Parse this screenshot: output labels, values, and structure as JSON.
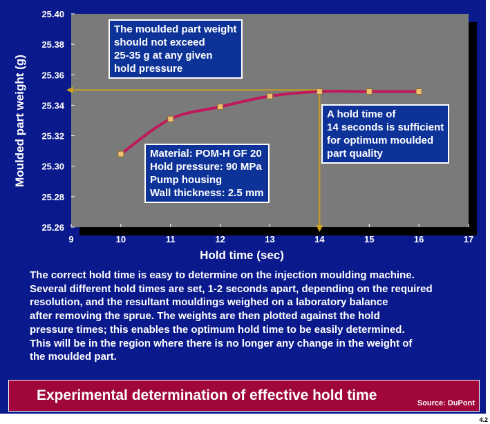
{
  "chart_data": {
    "type": "line",
    "xlabel": "Hold time (sec)",
    "ylabel": "Moulded part weight (g)",
    "xlim": [
      9,
      17
    ],
    "ylim": [
      25.26,
      25.4
    ],
    "x_ticks": [
      "9",
      "10",
      "11",
      "12",
      "13",
      "14",
      "15",
      "16",
      "17"
    ],
    "y_ticks": [
      "25.26",
      "25.28",
      "25.30",
      "25.32",
      "25.34",
      "25.36",
      "25.38",
      "25.40"
    ],
    "grid": false,
    "series": [
      {
        "x": [
          10,
          11,
          12,
          13,
          14,
          15,
          16
        ],
        "y": [
          25.308,
          25.331,
          25.339,
          25.346,
          25.349,
          25.349,
          25.349
        ]
      }
    ],
    "reference_lines": [
      {
        "orientation": "horizontal",
        "y": 25.35
      },
      {
        "orientation": "vertical",
        "x": 14
      }
    ],
    "annotations": [
      "The moulded part weight\nshould not exceed\n25-35 g at any given\nhold pressure",
      "A hold time of\n14 seconds is sufficient\nfor optimum moulded\npart quality",
      "Material: POM-H GF 20\nHold pressure: 90 MPa\nPump housing\nWall thickness: 2.5 mm"
    ]
  },
  "colors": {
    "slide_background": "#0a1a8c",
    "plot_background": "#7a7a7a",
    "curve": "#c0185a",
    "markers": "#f0c070",
    "reference_lines": "#c8a020",
    "banner": "#a0063a"
  },
  "description": "The correct hold time is easy to determine on the injection moulding machine.\nSeveral different hold times are set, 1-2 seconds apart, depending on the required\nresolution, and the resultant mouldings weighed on a laboratory balance\nafter removing the sprue. The weights are then plotted against the hold\npressure times; this enables the optimum hold time to be easily determined.\nThis will be in the region where there is no longer any change in the weight of\nthe moulded part.",
  "banner": {
    "title": "Experimental determination of effective hold time",
    "source": "Source: DuPont"
  },
  "slide_number": "4.2"
}
